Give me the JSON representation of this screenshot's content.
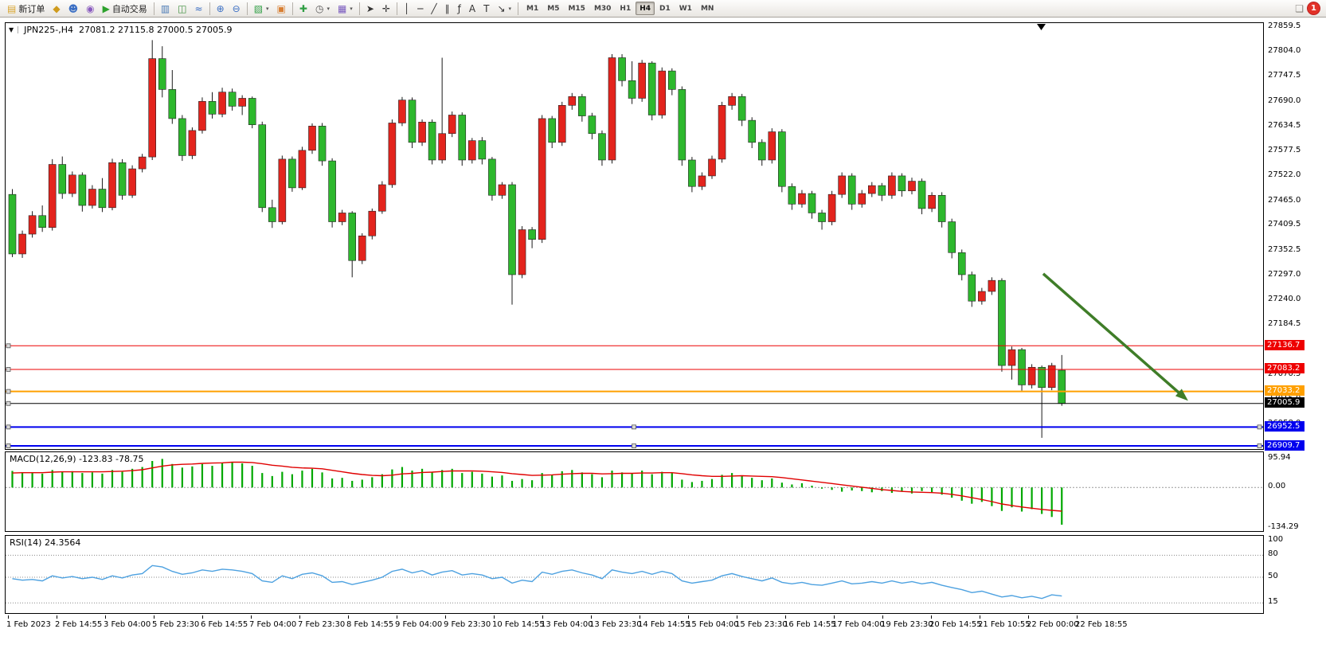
{
  "toolbar": {
    "items": [
      {
        "name": "new-order-button",
        "label": "新订单",
        "icon": "▤",
        "icon_color": "#d9a62e"
      },
      {
        "name": "market-watch-button",
        "icon": "◆",
        "icon_color": "#cf9b1d"
      },
      {
        "name": "data-window-button",
        "icon": "☻",
        "icon_color": "#3b6fc4"
      },
      {
        "name": "strategy-tester-button",
        "icon": "◉",
        "icon_color": "#8a5bbf"
      },
      {
        "name": "auto-trading-button",
        "label": "自动交易",
        "icon": "▶",
        "icon_color": "#2da12d"
      },
      {
        "sep": true
      },
      {
        "name": "bar-chart-button",
        "icon": "▥",
        "icon_color": "#4a7ab5"
      },
      {
        "name": "candlestick-chart-button",
        "icon": "◫",
        "icon_color": "#3d8f3d"
      },
      {
        "name": "line-chart-button",
        "icon": "≈",
        "icon_color": "#3b6fc4"
      },
      {
        "sep": true
      },
      {
        "name": "zoom-in-button",
        "icon": "⊕",
        "icon_color": "#3b6fc4"
      },
      {
        "name": "zoom-out-button",
        "icon": "⊖",
        "icon_color": "#3b6fc4"
      },
      {
        "sep": true
      },
      {
        "name": "new-chart-button",
        "icon": "▧",
        "icon_color": "#2f9e44",
        "caret": true
      },
      {
        "name": "tile-windows-button",
        "icon": "▣",
        "icon_color": "#d87f33"
      },
      {
        "sep": true
      },
      {
        "name": "indicators-button",
        "icon": "✚",
        "icon_color": "#2f9e44"
      },
      {
        "name": "period-button",
        "icon": "◷",
        "icon_color": "#555555",
        "caret": true
      },
      {
        "name": "template-button",
        "icon": "▦",
        "icon_color": "#7a5bbf",
        "caret": true
      },
      {
        "sep": true
      },
      {
        "name": "cursor-button",
        "icon": "➤",
        "icon_color": "#333333"
      },
      {
        "name": "crosshair-button",
        "icon": "✛",
        "icon_color": "#333333"
      },
      {
        "sep": true
      },
      {
        "name": "vertical-line-button",
        "icon": "│",
        "icon_color": "#333333"
      },
      {
        "name": "horizontal-line-button",
        "icon": "─",
        "icon_color": "#333333"
      },
      {
        "name": "trendline-button",
        "icon": "╱",
        "icon_color": "#333333"
      },
      {
        "name": "channel-button",
        "icon": "∥",
        "icon_color": "#333333"
      },
      {
        "name": "fibonacci-button",
        "icon": "ƒ",
        "icon_color": "#333333"
      },
      {
        "name": "text-button",
        "icon": "A",
        "icon_color": "#333333"
      },
      {
        "name": "label-button",
        "icon": "T",
        "icon_color": "#333333"
      },
      {
        "name": "shapes-button",
        "icon": "↘",
        "icon_color": "#333333",
        "caret": true
      },
      {
        "sep": true
      }
    ],
    "timeframes": [
      "M1",
      "M5",
      "M15",
      "M30",
      "H1",
      "H4",
      "D1",
      "W1",
      "MN"
    ],
    "active_timeframe": "H4",
    "badge": {
      "count": "1"
    }
  },
  "chart": {
    "title_symbol": "JPN225-,H4",
    "title_ohlc": "27081.2 27115.8 27000.5 27005.9",
    "macd_label": "MACD(12,26,9) -123.83 -78.75",
    "rsi_label": "RSI(14) 24.3564"
  },
  "chart_data": {
    "type": "candlestick",
    "symbol": "JPN225-",
    "timeframe": "H4",
    "current_ohlc": {
      "open": 27081.2,
      "high": 27115.8,
      "low": 27000.5,
      "close": 27005.9
    },
    "colors": {
      "up": "#e3241d",
      "down": "#2db82d",
      "wick": "#1a1a1a",
      "macd_hist": "#00a800",
      "macd_signal": "#e00000",
      "rsi_line": "#4da1e0",
      "arrow": "#3f7d28"
    },
    "price_axis_labels": [
      "27859.5",
      "27804.0",
      "27747.5",
      "27690.0",
      "27634.5",
      "27577.5",
      "27522.0",
      "27465.0",
      "27409.5",
      "27352.5",
      "27297.0",
      "27240.0",
      "27184.5",
      "27127.5",
      "27070.5",
      "27015.0",
      "26958.0",
      "26902.5"
    ],
    "candles": [
      [
        27480,
        27492,
        27338,
        27345
      ],
      [
        27345,
        27398,
        27336,
        27390
      ],
      [
        27390,
        27442,
        27382,
        27432
      ],
      [
        27432,
        27455,
        27395,
        27405
      ],
      [
        27405,
        27560,
        27398,
        27548
      ],
      [
        27548,
        27566,
        27470,
        27482
      ],
      [
        27482,
        27532,
        27474,
        27524
      ],
      [
        27524,
        27530,
        27441,
        27455
      ],
      [
        27455,
        27501,
        27448,
        27492
      ],
      [
        27492,
        27517,
        27440,
        27450
      ],
      [
        27450,
        27561,
        27444,
        27552
      ],
      [
        27552,
        27560,
        27468,
        27478
      ],
      [
        27478,
        27546,
        27472,
        27538
      ],
      [
        27538,
        27572,
        27530,
        27565
      ],
      [
        27565,
        27830,
        27558,
        27788
      ],
      [
        27788,
        27816,
        27700,
        27718
      ],
      [
        27718,
        27762,
        27640,
        27652
      ],
      [
        27652,
        27660,
        27556,
        27568
      ],
      [
        27568,
        27632,
        27560,
        27625
      ],
      [
        27625,
        27700,
        27618,
        27691
      ],
      [
        27691,
        27712,
        27652,
        27662
      ],
      [
        27662,
        27722,
        27655,
        27712
      ],
      [
        27712,
        27720,
        27670,
        27680
      ],
      [
        27680,
        27705,
        27660,
        27698
      ],
      [
        27698,
        27702,
        27630,
        27638
      ],
      [
        27638,
        27645,
        27440,
        27450
      ],
      [
        27450,
        27468,
        27404,
        27418
      ],
      [
        27418,
        27568,
        27412,
        27560
      ],
      [
        27560,
        27566,
        27486,
        27495
      ],
      [
        27495,
        27588,
        27490,
        27580
      ],
      [
        27580,
        27641,
        27572,
        27635
      ],
      [
        27635,
        27642,
        27545,
        27556
      ],
      [
        27556,
        27562,
        27405,
        27418
      ],
      [
        27418,
        27445,
        27410,
        27438
      ],
      [
        27438,
        27442,
        27292,
        27330
      ],
      [
        27330,
        27392,
        27322,
        27386
      ],
      [
        27386,
        27448,
        27378,
        27442
      ],
      [
        27442,
        27510,
        27436,
        27502
      ],
      [
        27502,
        27650,
        27495,
        27642
      ],
      [
        27642,
        27701,
        27635,
        27694
      ],
      [
        27694,
        27700,
        27585,
        27598
      ],
      [
        27598,
        27650,
        27590,
        27644
      ],
      [
        27644,
        27650,
        27548,
        27558
      ],
      [
        27558,
        27790,
        27550,
        27618
      ],
      [
        27618,
        27668,
        27610,
        27660
      ],
      [
        27660,
        27666,
        27545,
        27558
      ],
      [
        27558,
        27608,
        27550,
        27602
      ],
      [
        27602,
        27610,
        27548,
        27560
      ],
      [
        27560,
        27565,
        27466,
        27478
      ],
      [
        27478,
        27508,
        27470,
        27502
      ],
      [
        27502,
        27508,
        27230,
        27298
      ],
      [
        27298,
        27408,
        27290,
        27400
      ],
      [
        27400,
        27406,
        27358,
        27378
      ],
      [
        27378,
        27660,
        27370,
        27652
      ],
      [
        27652,
        27658,
        27585,
        27598
      ],
      [
        27598,
        27690,
        27590,
        27682
      ],
      [
        27682,
        27710,
        27672,
        27702
      ],
      [
        27702,
        27708,
        27645,
        27658
      ],
      [
        27658,
        27665,
        27605,
        27618
      ],
      [
        27618,
        27625,
        27545,
        27558
      ],
      [
        27558,
        27798,
        27550,
        27790
      ],
      [
        27790,
        27798,
        27725,
        27738
      ],
      [
        27738,
        27782,
        27685,
        27698
      ],
      [
        27698,
        27785,
        27690,
        27778
      ],
      [
        27778,
        27782,
        27648,
        27660
      ],
      [
        27660,
        27768,
        27652,
        27760
      ],
      [
        27760,
        27766,
        27705,
        27718
      ],
      [
        27718,
        27725,
        27545,
        27558
      ],
      [
        27558,
        27565,
        27485,
        27498
      ],
      [
        27498,
        27530,
        27490,
        27522
      ],
      [
        27522,
        27568,
        27515,
        27560
      ],
      [
        27560,
        27690,
        27552,
        27682
      ],
      [
        27682,
        27710,
        27672,
        27702
      ],
      [
        27702,
        27708,
        27635,
        27648
      ],
      [
        27648,
        27655,
        27585,
        27598
      ],
      [
        27598,
        27605,
        27545,
        27558
      ],
      [
        27558,
        27630,
        27550,
        27622
      ],
      [
        27622,
        27628,
        27485,
        27498
      ],
      [
        27498,
        27505,
        27445,
        27458
      ],
      [
        27458,
        27490,
        27450,
        27482
      ],
      [
        27482,
        27488,
        27425,
        27438
      ],
      [
        27438,
        27445,
        27400,
        27418
      ],
      [
        27418,
        27488,
        27410,
        27480
      ],
      [
        27480,
        27530,
        27472,
        27522
      ],
      [
        27522,
        27528,
        27445,
        27458
      ],
      [
        27458,
        27490,
        27450,
        27482
      ],
      [
        27482,
        27508,
        27474,
        27500
      ],
      [
        27500,
        27506,
        27465,
        27478
      ],
      [
        27478,
        27530,
        27470,
        27522
      ],
      [
        27522,
        27528,
        27475,
        27488
      ],
      [
        27488,
        27518,
        27480,
        27510
      ],
      [
        27510,
        27516,
        27435,
        27448
      ],
      [
        27448,
        27485,
        27440,
        27478
      ],
      [
        27478,
        27485,
        27405,
        27418
      ],
      [
        27418,
        27425,
        27335,
        27348
      ],
      [
        27348,
        27355,
        27285,
        27298
      ],
      [
        27298,
        27305,
        27225,
        27238
      ],
      [
        27238,
        27268,
        27230,
        27260
      ],
      [
        27260,
        27292,
        27252,
        27285
      ],
      [
        27285,
        27290,
        27078,
        27092
      ],
      [
        27092,
        27135,
        27060,
        27128
      ],
      [
        27128,
        27132,
        27035,
        27048
      ],
      [
        27048,
        27095,
        27040,
        27088
      ],
      [
        27088,
        27092,
        26928,
        27042
      ],
      [
        27042,
        27098,
        27036,
        27092
      ],
      [
        27081.2,
        27115.8,
        27000.5,
        27005.9
      ]
    ],
    "hlines": [
      {
        "price": 27136.7,
        "label": "27136.7",
        "color": "#ee0000",
        "width": 1,
        "selected": false
      },
      {
        "price": 27083.2,
        "label": "27083.2",
        "color": "#ee0000",
        "width": 1,
        "selected": false
      },
      {
        "price": 27033.2,
        "label": "27033.2",
        "color": "#ffa000",
        "width": 2,
        "selected": false
      },
      {
        "price": 27005.9,
        "label": "27005.9",
        "color": "#000000",
        "width": 1,
        "selected": false
      },
      {
        "price": 26952.5,
        "label": "26952.5",
        "color": "#0000ee",
        "width": 2,
        "selected": true
      },
      {
        "price": 26909.7,
        "label": "26909.7",
        "color": "#0000ee",
        "width": 2,
        "selected": true
      }
    ],
    "arrow": {
      "from": {
        "bar": 103.5,
        "price": 27300
      },
      "to": {
        "bar": 118,
        "price": 27012
      }
    },
    "macd": {
      "scale_labels": [
        {
          "v": 95.94,
          "t": "95.94"
        },
        {
          "v": 0,
          "t": "0.00"
        },
        {
          "v": -134.29,
          "t": "-134.29"
        }
      ],
      "histogram": [
        55,
        48,
        50,
        46,
        58,
        52,
        54,
        48,
        50,
        46,
        58,
        52,
        62,
        68,
        88,
        95,
        78,
        66,
        70,
        78,
        72,
        80,
        84,
        80,
        72,
        48,
        38,
        52,
        44,
        56,
        62,
        50,
        30,
        32,
        22,
        26,
        34,
        44,
        60,
        68,
        56,
        62,
        50,
        58,
        62,
        48,
        52,
        46,
        36,
        40,
        22,
        28,
        24,
        48,
        42,
        54,
        58,
        50,
        44,
        34,
        56,
        50,
        46,
        56,
        44,
        52,
        48,
        26,
        18,
        22,
        28,
        42,
        48,
        40,
        32,
        24,
        30,
        16,
        10,
        14,
        6,
        -4,
        -8,
        -14,
        -10,
        -12,
        -16,
        -12,
        -18,
        -14,
        -20,
        -12,
        -16,
        -24,
        -34,
        -44,
        -54,
        -48,
        -62,
        -78,
        -66,
        -80,
        -72,
        -88,
        -98,
        -123.83
      ],
      "signal": [
        48,
        49,
        49,
        49,
        51,
        52,
        52,
        52,
        52,
        52,
        53,
        54,
        56,
        59,
        65,
        71,
        75,
        77,
        78,
        80,
        81,
        82,
        84,
        84,
        83,
        79,
        74,
        71,
        67,
        65,
        64,
        62,
        57,
        52,
        47,
        43,
        40,
        39,
        41,
        45,
        47,
        50,
        51,
        53,
        55,
        55,
        55,
        54,
        52,
        50,
        46,
        43,
        40,
        41,
        42,
        44,
        46,
        47,
        47,
        45,
        46,
        47,
        47,
        48,
        48,
        49,
        49,
        46,
        42,
        39,
        37,
        37,
        38,
        39,
        38,
        37,
        36,
        33,
        29,
        25,
        21,
        17,
        13,
        9,
        5,
        1,
        -3,
        -7,
        -10,
        -13,
        -15,
        -16,
        -17,
        -19,
        -23,
        -28,
        -34,
        -40,
        -47,
        -55,
        -60,
        -65,
        -69,
        -73,
        -76,
        -78.75
      ]
    },
    "rsi": {
      "levels": [
        80,
        50,
        15
      ],
      "scale_labels": [
        {
          "v": 100,
          "t": "100"
        },
        {
          "v": 80,
          "t": "80"
        },
        {
          "v": 50,
          "t": "50"
        },
        {
          "v": 15,
          "t": "15"
        }
      ],
      "values": [
        48,
        46,
        47,
        45,
        52,
        49,
        51,
        48,
        50,
        47,
        52,
        49,
        53,
        55,
        66,
        64,
        58,
        54,
        56,
        60,
        58,
        61,
        60,
        58,
        55,
        45,
        43,
        52,
        48,
        54,
        56,
        52,
        43,
        44,
        40,
        43,
        46,
        50,
        58,
        61,
        56,
        59,
        53,
        57,
        59,
        53,
        55,
        53,
        48,
        50,
        42,
        46,
        44,
        57,
        54,
        58,
        60,
        56,
        53,
        48,
        60,
        57,
        55,
        58,
        54,
        58,
        55,
        45,
        42,
        44,
        46,
        52,
        55,
        51,
        48,
        45,
        49,
        43,
        41,
        43,
        40,
        39,
        42,
        45,
        41,
        42,
        44,
        42,
        45,
        42,
        44,
        41,
        43,
        39,
        36,
        33,
        29,
        31,
        27,
        23,
        25,
        22,
        24,
        21,
        26,
        24.36
      ]
    },
    "time_labels": [
      "1 Feb 2023",
      "2 Feb 14:55",
      "3 Feb 04:00",
      "5 Feb 23:30",
      "6 Feb 14:55",
      "7 Feb 04:00",
      "7 Feb 23:30",
      "8 Feb 14:55",
      "9 Feb 04:00",
      "9 Feb 23:30",
      "10 Feb 14:55",
      "13 Feb 04:00",
      "13 Feb 23:30",
      "14 Feb 14:55",
      "15 Feb 04:00",
      "15 Feb 23:30",
      "16 Feb 14:55",
      "17 Feb 04:00",
      "19 Feb 23:30",
      "20 Feb 14:55",
      "21 Feb 10:55",
      "22 Feb 00:00",
      "22 Feb 18:55"
    ]
  }
}
